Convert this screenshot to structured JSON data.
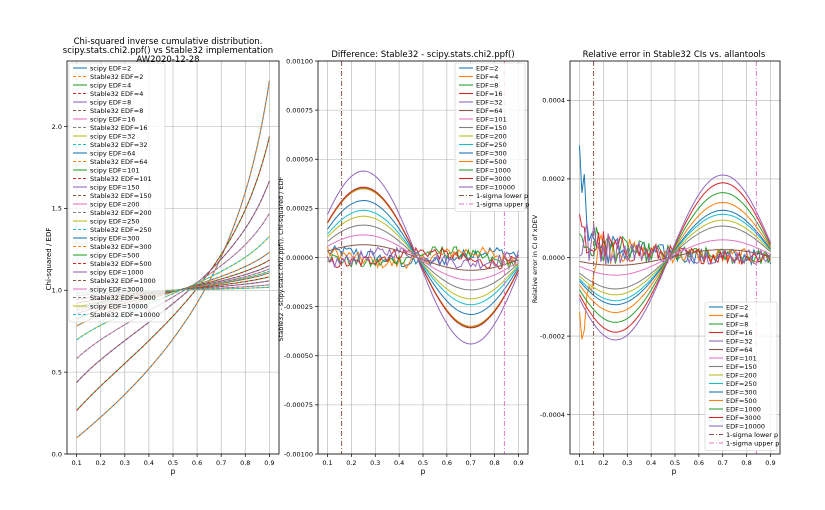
{
  "chart_data": [
    {
      "type": "line",
      "title_lines": [
        "Chi-squared inverse cumulative distribution.",
        "scipy.stats.chi2.ppf() vs Stable32 implementation",
        "AW2020-12-28"
      ],
      "xlabel": "p",
      "ylabel": "Chi-squared / EDF",
      "xlim": [
        0.06,
        0.94
      ],
      "ylim": [
        0.0,
        2.4
      ],
      "xticks": [
        "0.1",
        "0.2",
        "0.3",
        "0.4",
        "0.5",
        "0.6",
        "0.7",
        "0.8",
        "0.9"
      ],
      "yticks": [
        "0.0",
        "0.5",
        "1.0",
        "1.5",
        "2.0"
      ],
      "legend_position": "upper-left",
      "edf": [
        2,
        4,
        8,
        16,
        32,
        64,
        101,
        150,
        200,
        250,
        300,
        500,
        1000,
        3000,
        10000
      ],
      "legend": [
        "scipy EDF=2",
        "Stable32 EDF=2",
        "scipy EDF=4",
        "Stable32 EDF=4",
        "scipy EDF=8",
        "Stable32 EDF=8",
        "scipy EDF=16",
        "Stable32 EDF=16",
        "scipy EDF=32",
        "Stable32 EDF=32",
        "scipy EDF=64",
        "Stable32 EDF=64",
        "scipy EDF=101",
        "Stable32 EDF=101",
        "scipy EDF=150",
        "Stable32 EDF=150",
        "scipy EDF=200",
        "Stable32 EDF=200",
        "scipy EDF=250",
        "Stable32 EDF=250",
        "scipy EDF=300",
        "Stable32 EDF=300",
        "scipy EDF=500",
        "Stable32 EDF=500",
        "scipy EDF=1000",
        "Stable32 EDF=1000",
        "scipy EDF=3000",
        "Stable32 EDF=3000",
        "scipy EDF=10000",
        "Stable32 EDF=10000"
      ]
    },
    {
      "type": "line",
      "title": "Difference: Stable32 - scipy.stats.chi2.ppf()",
      "xlabel": "p",
      "ylabel": "Stable32 - scipy.stats.chi2.ppf(), Chi-squared / EDF",
      "xlim": [
        0.06,
        0.94
      ],
      "ylim": [
        -0.001,
        0.001
      ],
      "xticks": [
        "0.1",
        "0.2",
        "0.3",
        "0.4",
        "0.5",
        "0.6",
        "0.7",
        "0.8",
        "0.9"
      ],
      "yticks": [
        "-0.00100",
        "-0.00075",
        "-0.00050",
        "-0.00025",
        "0.00000",
        "0.00025",
        "0.00050",
        "0.00075",
        "0.00100"
      ],
      "legend_position": "upper-right",
      "sigma_lines": {
        "lower_p": 0.1587,
        "upper_p": 0.8413
      },
      "legend": [
        "EDF=2",
        "EDF=4",
        "EDF=8",
        "EDF=16",
        "EDF=32",
        "EDF=64",
        "EDF=101",
        "EDF=150",
        "EDF=200",
        "EDF=250",
        "EDF=300",
        "EDF=500",
        "EDF=1000",
        "EDF=3000",
        "EDF=10000",
        "1-sigma lower p",
        "1-sigma upper p"
      ],
      "sine_amplitudes": [
        3e-05,
        3e-05,
        3e-05,
        3e-05,
        3e-05,
        6.5e-05,
        0.000115,
        0.000165,
        0.00021,
        0.00024,
        0.00029,
        0.00035,
        0.000355,
        0.000358,
        0.00044
      ]
    },
    {
      "type": "line",
      "title": "Relative error in Stable32 CIs vs. allantools",
      "xlabel": "p",
      "ylabel": "Relative error in CI of xDEV",
      "xlim": [
        0.06,
        0.94
      ],
      "ylim": [
        -0.0005,
        0.0005
      ],
      "xticks": [
        "0.1",
        "0.2",
        "0.3",
        "0.4",
        "0.5",
        "0.6",
        "0.7",
        "0.8",
        "0.9"
      ],
      "yticks": [
        "-0.0004",
        "-0.0002",
        "0.0000",
        "0.0002",
        "0.0004"
      ],
      "legend_position": "lower-right",
      "sigma_lines": {
        "lower_p": 0.1587,
        "upper_p": 0.8413
      },
      "legend": [
        "EDF=2",
        "EDF=4",
        "EDF=8",
        "EDF=16",
        "EDF=32",
        "EDF=64",
        "EDF=101",
        "EDF=150",
        "EDF=200",
        "EDF=250",
        "EDF=300",
        "EDF=500",
        "EDF=1000",
        "EDF=3000",
        "EDF=10000",
        "1-sigma lower p",
        "1-sigma upper p"
      ],
      "sine_amplitudes": [
        1e-05,
        1e-05,
        1e-05,
        1e-05,
        1e-05,
        2e-05,
        4.5e-05,
        8e-05,
        9.5e-05,
        0.00011,
        0.00012,
        0.00014,
        0.000165,
        0.00019,
        0.00021
      ]
    }
  ],
  "palette": [
    "#1f77b4",
    "#ff7f0e",
    "#2ca02c",
    "#d62728",
    "#9467bd",
    "#8c564b",
    "#e377c2",
    "#7f7f7f",
    "#bcbd22",
    "#17becf"
  ]
}
